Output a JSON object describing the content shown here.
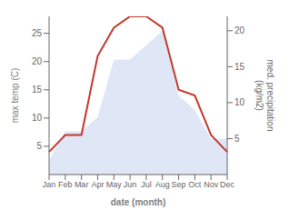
{
  "chart_data": {
    "type": "line",
    "categories": [
      "Jan",
      "Feb",
      "Mar",
      "Apr",
      "May",
      "Jun",
      "Jul",
      "Aug",
      "Sep",
      "Oct",
      "Nov",
      "Dec"
    ],
    "series": [
      {
        "type": "area",
        "axis": "y2",
        "color": "#c5d4f0",
        "values": [
          2,
          6,
          6,
          8,
          16,
          16,
          18,
          20,
          11,
          9,
          5,
          5
        ]
      },
      {
        "type": "line",
        "axis": "y",
        "color": "#c0392b",
        "values": [
          4,
          7,
          7,
          21,
          26,
          28,
          28,
          26,
          15,
          14,
          7,
          4
        ]
      }
    ],
    "xlabel": "date (month)",
    "ylabel": "max temp (C)",
    "y2label": "med. precipitation\n(kg/m2)",
    "ylim": [
      0,
      28
    ],
    "yticks": [
      5,
      10,
      15,
      20,
      25
    ],
    "y2lim": [
      0,
      22
    ],
    "y2ticks": [
      5,
      10,
      15,
      20
    ],
    "grid": false
  }
}
